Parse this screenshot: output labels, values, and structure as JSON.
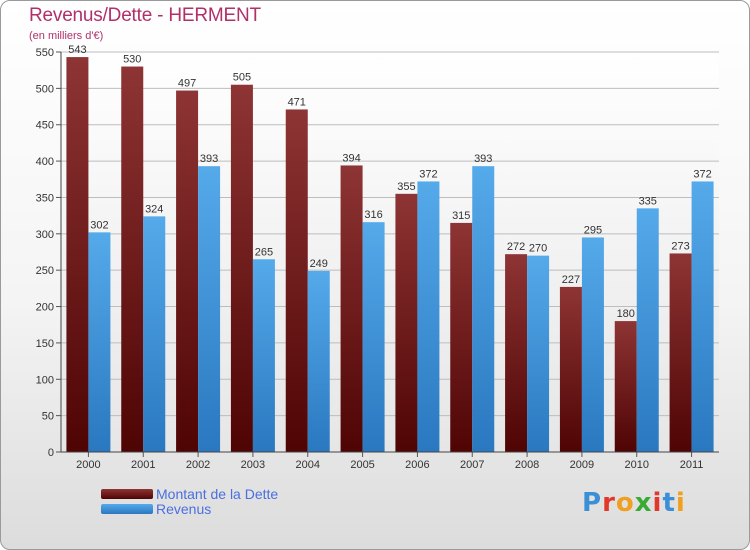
{
  "header": {
    "title": "Revenus/Dette - HERMENT",
    "subtitle": "(en milliers d'€)"
  },
  "legend": {
    "items": [
      {
        "label": "Montant de la Dette",
        "color": "#7a1a1a"
      },
      {
        "label": "Revenus",
        "color": "#4aa3e3"
      }
    ]
  },
  "logo": {
    "text": "Proxiti",
    "letter_colors": [
      "#3a8fd6",
      "#e0382b",
      "#f0a020",
      "#3aaa35",
      "#e0382b",
      "#3a8fd6",
      "#f0a020"
    ]
  },
  "chart_data": {
    "type": "bar",
    "title": "Revenus/Dette - HERMENT",
    "ylabel": "(en milliers d'€)",
    "xlabel": "",
    "categories": [
      "2000",
      "2001",
      "2002",
      "2003",
      "2004",
      "2005",
      "2006",
      "2007",
      "2008",
      "2009",
      "2010",
      "2011"
    ],
    "series": [
      {
        "name": "Montant de la Dette",
        "color": "#7a1a1a",
        "values": [
          543,
          530,
          497,
          505,
          471,
          394,
          355,
          315,
          272,
          227,
          180,
          273
        ]
      },
      {
        "name": "Revenus",
        "color": "#4aa3e3",
        "values": [
          302,
          324,
          393,
          265,
          249,
          316,
          372,
          393,
          270,
          295,
          335,
          372
        ]
      }
    ],
    "ylim": [
      0,
      550
    ],
    "yticks": [
      0,
      50,
      100,
      150,
      200,
      250,
      300,
      350,
      400,
      450,
      500,
      550
    ],
    "grid": true,
    "legend_position": "bottom-left"
  }
}
